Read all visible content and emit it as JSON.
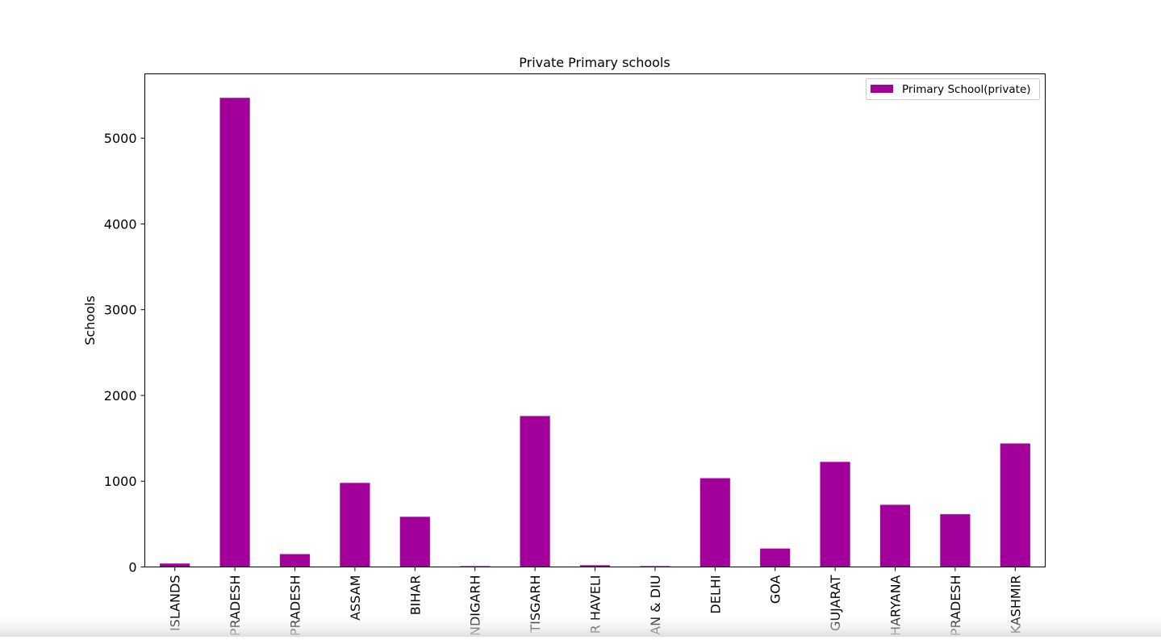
{
  "chart_data": {
    "type": "bar",
    "title": "Private Primary schools",
    "xlabel": "",
    "ylabel": "Schools",
    "ylim": [
      0,
      5750
    ],
    "yticks": [
      0,
      1000,
      2000,
      3000,
      4000,
      5000
    ],
    "grid": false,
    "legend_position": "top-right",
    "bar_color": "#a3009b",
    "categories": [
      "ISLANDS",
      "PRADESH",
      "PRADESH",
      "ASSAM",
      "BIHAR",
      "NDIGARH",
      "TISGARH",
      "R HAVELI",
      "AN & DIU",
      "DELHI",
      "GOA",
      "GUJARAT",
      "HARYANA",
      "PRADESH",
      "KASHMIR"
    ],
    "series": [
      {
        "name": "Primary School(private)",
        "values": [
          40,
          5470,
          150,
          980,
          585,
          10,
          1760,
          20,
          10,
          1035,
          215,
          1225,
          725,
          615,
          1440
        ]
      }
    ]
  }
}
